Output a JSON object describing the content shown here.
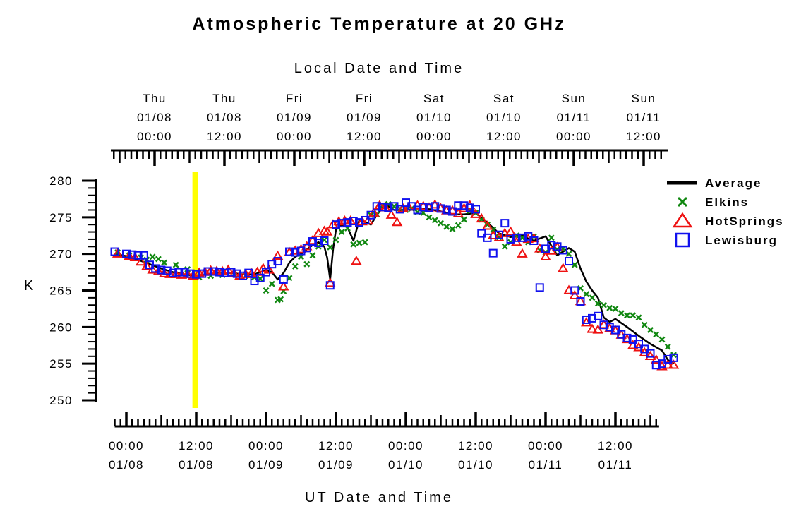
{
  "chart_data": {
    "type": "scatter",
    "title": "Atmospheric Temperature at 20 GHz",
    "xlabel": "UT Date and Time",
    "x2label": "Local Date and Time",
    "ylabel": "K",
    "ylim": [
      250,
      280
    ],
    "yticks": [
      "280",
      "275",
      "270",
      "265",
      "260",
      "255",
      "250"
    ],
    "xlim": [
      "01/07 22:00",
      "01/11 23:30"
    ],
    "x_ticks_ut": [
      {
        "time": "00:00",
        "date": "01/08"
      },
      {
        "time": "12:00",
        "date": "01/08"
      },
      {
        "time": "00:00",
        "date": "01/09"
      },
      {
        "time": "12:00",
        "date": "01/09"
      },
      {
        "time": "00:00",
        "date": "01/10"
      },
      {
        "time": "12:00",
        "date": "01/10"
      },
      {
        "time": "00:00",
        "date": "01/11"
      },
      {
        "time": "12:00",
        "date": "01/11"
      }
    ],
    "x_ticks_local": [
      {
        "day": "Thu",
        "date": "01/08",
        "time": "00:00"
      },
      {
        "day": "Thu",
        "date": "01/08",
        "time": "12:00"
      },
      {
        "day": "Fri",
        "date": "01/09",
        "time": "00:00"
      },
      {
        "day": "Fri",
        "date": "01/09",
        "time": "12:00"
      },
      {
        "day": "Sat",
        "date": "01/10",
        "time": "00:00"
      },
      {
        "day": "Sat",
        "date": "01/10",
        "time": "12:00"
      },
      {
        "day": "Sun",
        "date": "01/11",
        "time": "00:00"
      },
      {
        "day": "Sun",
        "date": "01/11",
        "time": "12:00"
      }
    ],
    "marker_line": {
      "x": "01/08 11:50",
      "color": "#ffff00"
    },
    "legend_position": "right",
    "colors": {
      "Average": "#000000",
      "Elkins": "#118811",
      "HotSprings": "#ee1111",
      "Lewisburg": "#1111ee",
      "marker": "#ffff00"
    },
    "series": [
      {
        "name": "Average",
        "kind": "line",
        "x": [
          "01/07 22:00",
          "01/08 00:00",
          "01/08 02:00",
          "01/08 04:00",
          "01/08 06:00",
          "01/08 08:00",
          "01/08 10:00",
          "01/08 12:00",
          "01/08 14:00",
          "01/08 16:00",
          "01/08 18:00",
          "01/08 20:00",
          "01/08 22:00",
          "01/09 00:00",
          "01/09 01:00",
          "01/09 02:00",
          "01/09 03:00",
          "01/09 04:00",
          "01/09 05:00",
          "01/09 06:00",
          "01/09 07:00",
          "01/09 08:00",
          "01/09 09:00",
          "01/09 10:00",
          "01/09 10:30",
          "01/09 11:00",
          "01/09 11:30",
          "01/09 12:00",
          "01/09 13:00",
          "01/09 14:00",
          "01/09 15:00",
          "01/09 16:00",
          "01/09 17:00",
          "01/09 18:00",
          "01/09 19:00",
          "01/09 20:00",
          "01/09 21:00",
          "01/09 22:00",
          "01/10 00:00",
          "01/10 02:00",
          "01/10 04:00",
          "01/10 06:00",
          "01/10 08:00",
          "01/10 10:00",
          "01/10 12:00",
          "01/10 14:00",
          "01/10 16:00",
          "01/10 18:00",
          "01/10 20:00",
          "01/10 21:00",
          "01/10 22:00",
          "01/11 00:00",
          "01/11 02:00",
          "01/11 03:00",
          "01/11 04:00",
          "01/11 05:00",
          "01/11 06:00",
          "01/11 07:00",
          "01/11 08:00",
          "01/11 09:00",
          "01/11 10:00",
          "01/11 11:00",
          "01/11 12:00",
          "01/11 14:00",
          "01/11 16:00",
          "01/11 18:00",
          "01/11 20:00",
          "01/11 21:00",
          "01/11 22:00"
        ],
        "y": [
          270.0,
          269.7,
          269.2,
          268.6,
          268.0,
          267.5,
          267.2,
          267.0,
          267.2,
          267.4,
          267.4,
          267.2,
          267.2,
          267.8,
          267.5,
          266.5,
          267.4,
          268.8,
          269.6,
          270.0,
          270.6,
          271.2,
          271.6,
          271.0,
          269.5,
          266.5,
          270.6,
          273.3,
          274.0,
          273.6,
          271.8,
          274.6,
          274.4,
          274.0,
          275.3,
          276.3,
          276.5,
          276.0,
          276.0,
          276.2,
          276.1,
          275.8,
          275.4,
          275.4,
          275.6,
          274.3,
          272.8,
          272.3,
          272.6,
          272.1,
          271.8,
          272.4,
          269.8,
          270.3,
          270.8,
          270.3,
          268.0,
          266.2,
          265.0,
          264.0,
          261.3,
          260.7,
          261.1,
          260.0,
          258.8,
          257.7,
          256.8,
          255.5,
          255.0
        ]
      },
      {
        "name": "Elkins",
        "kind": "scatter",
        "marker": "x",
        "x": [
          "01/07 22:30",
          "01/08 00:30",
          "01/08 02:30",
          "01/08 03:30",
          "01/08 04:30",
          "01/08 05:30",
          "01/08 06:30",
          "01/08 08:30",
          "01/08 10:30",
          "01/08 12:30",
          "01/08 14:30",
          "01/08 16:30",
          "01/08 18:30",
          "01/08 20:30",
          "01/08 22:00",
          "01/08 23:00",
          "01/09 00:00",
          "01/09 01:00",
          "01/09 02:00",
          "01/09 02:30",
          "01/09 03:00",
          "01/09 04:00",
          "01/09 05:00",
          "01/09 06:00",
          "01/09 07:00",
          "01/09 08:00",
          "01/09 09:00",
          "01/09 10:00",
          "01/09 11:00",
          "01/09 12:00",
          "01/09 13:00",
          "01/09 14:00",
          "01/09 15:00",
          "01/09 16:00",
          "01/09 17:00",
          "01/09 18:00",
          "01/09 19:00",
          "01/09 20:00",
          "01/09 21:00",
          "01/09 22:00",
          "01/09 23:00",
          "01/10 00:00",
          "01/10 01:00",
          "01/10 02:00",
          "01/10 03:00",
          "01/10 04:00",
          "01/10 05:00",
          "01/10 06:00",
          "01/10 07:00",
          "01/10 08:00",
          "01/10 09:00",
          "01/10 10:00",
          "01/10 11:00",
          "01/10 12:00",
          "01/10 13:00",
          "01/10 14:00",
          "01/10 15:00",
          "01/10 16:00",
          "01/10 17:00",
          "01/10 18:00",
          "01/10 19:00",
          "01/10 20:00",
          "01/10 21:00",
          "01/10 22:00",
          "01/10 23:00",
          "01/11 00:00",
          "01/11 01:00",
          "01/11 02:00",
          "01/11 03:00",
          "01/11 04:00",
          "01/11 05:00",
          "01/11 06:00",
          "01/11 07:00",
          "01/11 08:00",
          "01/11 09:00",
          "01/11 10:00",
          "01/11 11:00",
          "01/11 12:00",
          "01/11 13:00",
          "01/11 14:00",
          "01/11 15:00",
          "01/11 16:00",
          "01/11 17:00",
          "01/11 18:00",
          "01/11 19:00",
          "01/11 20:00",
          "01/11 21:00",
          "01/11 22:00"
        ],
        "y": [
          270.2,
          269.8,
          269.5,
          269.2,
          269.6,
          269.3,
          268.8,
          268.5,
          267.9,
          266.8,
          267.0,
          267.1,
          267.2,
          267.0,
          266.8,
          266.6,
          265.0,
          265.9,
          263.7,
          263.8,
          264.9,
          266.7,
          268.3,
          269.6,
          268.6,
          269.8,
          271.0,
          271.9,
          270.9,
          271.9,
          273.0,
          273.5,
          271.3,
          271.5,
          271.6,
          275.3,
          275.4,
          276.6,
          276.8,
          276.5,
          276.2,
          276.0,
          276.2,
          275.7,
          275.6,
          275.0,
          274.6,
          274.2,
          273.7,
          273.4,
          273.9,
          274.7,
          275.9,
          275.6,
          274.7,
          274.0,
          273.3,
          272.3,
          271.0,
          271.6,
          272.5,
          272.2,
          271.6,
          272.4,
          270.5,
          270.2,
          272.2,
          270.6,
          270.7,
          270.0,
          268.5,
          265.3,
          264.5,
          264.0,
          263.2,
          263.0,
          262.6,
          262.5,
          261.9,
          261.6,
          261.6,
          261.3,
          260.3,
          259.6,
          259.0,
          258.3,
          257.3,
          256.2
        ]
      },
      {
        "name": "HotSprings",
        "kind": "scatter",
        "marker": "triangle",
        "x": [
          "01/07 22:30",
          "01/08 00:30",
          "01/08 01:30",
          "01/08 02:30",
          "01/08 03:30",
          "01/08 04:30",
          "01/08 05:30",
          "01/08 06:30",
          "01/08 07:30",
          "01/08 08:30",
          "01/08 09:30",
          "01/08 10:30",
          "01/08 11:30",
          "01/08 12:30",
          "01/08 13:30",
          "01/08 14:30",
          "01/08 15:30",
          "01/08 16:30",
          "01/08 17:30",
          "01/08 18:30",
          "01/08 19:30",
          "01/08 20:30",
          "01/08 21:30",
          "01/08 22:30",
          "01/08 23:30",
          "01/09 00:30",
          "01/09 02:00",
          "01/09 03:00",
          "01/09 04:00",
          "01/09 05:00",
          "01/09 06:00",
          "01/09 07:00",
          "01/09 08:00",
          "01/09 09:00",
          "01/09 10:00",
          "01/09 10:30",
          "01/09 11:00",
          "01/09 11:30",
          "01/09 12:30",
          "01/09 13:30",
          "01/09 14:30",
          "01/09 15:30",
          "01/09 16:30",
          "01/09 17:30",
          "01/09 18:30",
          "01/09 19:30",
          "01/09 20:30",
          "01/09 21:30",
          "01/09 22:30",
          "01/09 23:30",
          "01/10 00:30",
          "01/10 02:00",
          "01/10 03:00",
          "01/10 04:00",
          "01/10 05:00",
          "01/10 06:00",
          "01/10 07:00",
          "01/10 08:00",
          "01/10 09:00",
          "01/10 10:00",
          "01/10 11:00",
          "01/10 12:00",
          "01/10 13:00",
          "01/10 14:00",
          "01/10 15:00",
          "01/10 16:00",
          "01/10 17:00",
          "01/10 18:00",
          "01/10 19:00",
          "01/10 20:00",
          "01/10 21:00",
          "01/10 22:00",
          "01/10 23:00",
          "01/11 00:00",
          "01/11 01:00",
          "01/11 02:00",
          "01/11 03:00",
          "01/11 04:00",
          "01/11 05:00",
          "01/11 06:00",
          "01/11 07:00",
          "01/11 08:00",
          "01/11 09:00",
          "01/11 10:00",
          "01/11 11:00",
          "01/11 12:00",
          "01/11 13:00",
          "01/11 14:00",
          "01/11 15:00",
          "01/11 16:00",
          "01/11 17:00",
          "01/11 18:00",
          "01/11 19:00",
          "01/11 20:00",
          "01/11 21:00",
          "01/11 22:00"
        ],
        "y": [
          270.0,
          269.7,
          269.5,
          268.9,
          268.3,
          267.8,
          267.6,
          267.3,
          267.2,
          267.2,
          267.1,
          267.2,
          267.0,
          267.4,
          267.5,
          267.7,
          267.6,
          267.6,
          267.8,
          267.3,
          267.0,
          267.2,
          267.3,
          267.5,
          268.0,
          267.8,
          269.7,
          265.5,
          270.2,
          270.4,
          270.6,
          271.0,
          271.8,
          272.8,
          273.1,
          273.0,
          266.0,
          274.0,
          274.4,
          274.5,
          274.5,
          269.0,
          274.4,
          274.5,
          275.6,
          276.6,
          276.3,
          275.3,
          274.3,
          276.2,
          276.4,
          276.6,
          276.5,
          276.3,
          276.7,
          276.2,
          275.9,
          275.9,
          275.5,
          276.2,
          276.6,
          275.4,
          274.8,
          273.8,
          272.5,
          272.2,
          272.8,
          273.0,
          271.6,
          270.0,
          272.0,
          272.1,
          270.7,
          269.6,
          270.4,
          270.9,
          268.0,
          265.0,
          264.3,
          263.5,
          260.6,
          259.7,
          259.6,
          260.3,
          259.8,
          259.5,
          258.9,
          258.3,
          257.5,
          257.2,
          256.5,
          256.0,
          255.5,
          254.6,
          254.8,
          254.8
        ]
      },
      {
        "name": "Lewisburg",
        "kind": "scatter",
        "marker": "square",
        "x": [
          "01/07 22:00",
          "01/08 00:00",
          "01/08 01:00",
          "01/08 02:00",
          "01/08 03:00",
          "01/08 04:00",
          "01/08 05:00",
          "01/08 06:00",
          "01/08 07:00",
          "01/08 08:00",
          "01/08 09:00",
          "01/08 10:00",
          "01/08 11:00",
          "01/08 12:00",
          "01/08 13:00",
          "01/08 14:00",
          "01/08 15:00",
          "01/08 16:00",
          "01/08 17:00",
          "01/08 18:00",
          "01/08 19:00",
          "01/08 20:00",
          "01/08 21:00",
          "01/08 22:00",
          "01/08 23:00",
          "01/09 00:00",
          "01/09 01:00",
          "01/09 02:00",
          "01/09 03:00",
          "01/09 04:00",
          "01/09 05:00",
          "01/09 06:00",
          "01/09 07:00",
          "01/09 08:00",
          "01/09 09:00",
          "01/09 10:00",
          "01/09 11:00",
          "01/09 12:00",
          "01/09 13:00",
          "01/09 14:00",
          "01/09 15:00",
          "01/09 16:00",
          "01/09 17:00",
          "01/09 18:00",
          "01/09 19:00",
          "01/09 20:00",
          "01/09 21:00",
          "01/09 22:00",
          "01/09 23:00",
          "01/10 00:00",
          "01/10 01:00",
          "01/10 02:00",
          "01/10 03:00",
          "01/10 04:00",
          "01/10 05:00",
          "01/10 06:00",
          "01/10 07:00",
          "01/10 08:00",
          "01/10 09:00",
          "01/10 10:00",
          "01/10 11:00",
          "01/10 12:00",
          "01/10 13:00",
          "01/10 14:00",
          "01/10 15:00",
          "01/10 16:00",
          "01/10 17:00",
          "01/10 18:00",
          "01/10 19:00",
          "01/10 20:00",
          "01/10 21:00",
          "01/10 22:00",
          "01/10 23:00",
          "01/11 00:00",
          "01/11 01:00",
          "01/11 02:00",
          "01/11 03:00",
          "01/11 04:00",
          "01/11 05:00",
          "01/11 06:00",
          "01/11 07:00",
          "01/11 08:00",
          "01/11 09:00",
          "01/11 10:00",
          "01/11 11:00",
          "01/11 12:00",
          "01/11 13:00",
          "01/11 14:00",
          "01/11 15:00",
          "01/11 16:00",
          "01/11 17:00",
          "01/11 18:00",
          "01/11 19:00",
          "01/11 20:00",
          "01/11 21:00",
          "01/11 22:00"
        ],
        "y": [
          270.3,
          270.0,
          269.9,
          269.8,
          269.8,
          268.5,
          268.0,
          267.8,
          267.7,
          267.4,
          267.5,
          267.5,
          267.3,
          267.2,
          267.3,
          267.6,
          267.6,
          267.5,
          267.4,
          267.5,
          267.3,
          267.0,
          267.4,
          266.3,
          266.7,
          267.5,
          268.6,
          269.0,
          266.5,
          270.3,
          270.2,
          270.4,
          270.8,
          271.7,
          271.5,
          271.8,
          265.7,
          274.0,
          274.2,
          274.3,
          274.5,
          274.3,
          274.6,
          275.3,
          276.5,
          276.4,
          276.3,
          276.5,
          276.1,
          277.0,
          276.5,
          276.0,
          276.4,
          276.3,
          276.5,
          276.2,
          276.0,
          275.8,
          276.6,
          276.6,
          276.3,
          276.1,
          272.8,
          272.2,
          270.1,
          272.6,
          274.2,
          272.0,
          272.2,
          272.2,
          272.4,
          271.8,
          265.4,
          270.7,
          271.2,
          271.0,
          270.5,
          269.0,
          265.0,
          263.5,
          261.0,
          261.2,
          261.5,
          260.3,
          260.0,
          259.6,
          259.0,
          258.5,
          258.3,
          257.7,
          257.0,
          256.4,
          254.8,
          255.0,
          255.6,
          255.8
        ]
      }
    ]
  }
}
